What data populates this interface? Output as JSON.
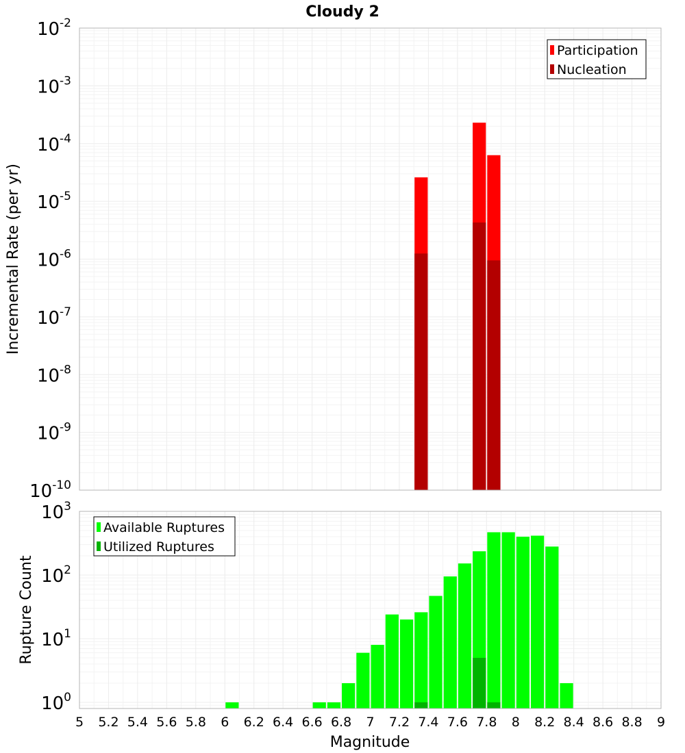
{
  "title": "Cloudy 2",
  "xlabel": "Magnitude",
  "x_ticks": [
    "5",
    "5.2",
    "5.4",
    "5.6",
    "5.8",
    "6",
    "6.2",
    "6.4",
    "6.6",
    "6.8",
    "7",
    "7.2",
    "7.4",
    "7.6",
    "7.8",
    "8",
    "8.2",
    "8.4",
    "8.6",
    "8.8",
    "9"
  ],
  "colors": {
    "participation": "#ff0000",
    "nucleation": "#b30000",
    "available": "#00ff00",
    "utilized": "#00b300"
  },
  "chart_data": [
    {
      "type": "bar",
      "title": "Cloudy 2",
      "xlabel": "",
      "ylabel": "Incremental Rate (per yr)",
      "yscale": "log",
      "ylim": [
        1e-10,
        0.01
      ],
      "xlim": [
        5,
        9
      ],
      "y_ticks": [
        {
          "base": "10",
          "exp": "-2"
        },
        {
          "base": "10",
          "exp": "-3"
        },
        {
          "base": "10",
          "exp": "-4"
        },
        {
          "base": "10",
          "exp": "-5"
        },
        {
          "base": "10",
          "exp": "-6"
        },
        {
          "base": "10",
          "exp": "-7"
        },
        {
          "base": "10",
          "exp": "-8"
        },
        {
          "base": "10",
          "exp": "-9"
        },
        {
          "base": "10",
          "exp": "-10"
        }
      ],
      "legend": {
        "position": "top-right",
        "entries": [
          "Participation",
          "Nucleation"
        ]
      },
      "series": [
        {
          "name": "Participation",
          "x": [
            7.35,
            7.75,
            7.85
          ],
          "values": [
            2.6e-05,
            0.00023,
            6.3e-05
          ]
        },
        {
          "name": "Nucleation",
          "x": [
            7.35,
            7.75,
            7.85
          ],
          "values": [
            1.25e-06,
            4.3e-06,
            9.5e-07
          ]
        }
      ]
    },
    {
      "type": "bar",
      "xlabel": "Magnitude",
      "ylabel": "Rupture Count",
      "yscale": "log",
      "ylim": [
        0.8,
        1000
      ],
      "xlim": [
        5,
        9
      ],
      "y_ticks": [
        {
          "base": "10",
          "exp": "3"
        },
        {
          "base": "10",
          "exp": "2"
        },
        {
          "base": "10",
          "exp": "1"
        },
        {
          "base": "10",
          "exp": "0"
        }
      ],
      "legend": {
        "position": "top-left",
        "entries": [
          "Available Ruptures",
          "Utilized Ruptures"
        ]
      },
      "series": [
        {
          "name": "Available Ruptures",
          "x": [
            6.05,
            6.65,
            6.75,
            6.85,
            6.95,
            7.05,
            7.15,
            7.25,
            7.35,
            7.45,
            7.55,
            7.65,
            7.75,
            7.85,
            7.95,
            8.05,
            8.15,
            8.25,
            8.35
          ],
          "values": [
            1,
            1,
            1,
            2,
            6,
            8,
            24,
            20,
            26,
            47,
            95,
            152,
            236,
            470,
            470,
            400,
            415,
            280,
            2
          ]
        },
        {
          "name": "Utilized Ruptures",
          "x": [
            7.35,
            7.75,
            7.85
          ],
          "values": [
            1,
            5,
            1
          ]
        }
      ]
    }
  ]
}
